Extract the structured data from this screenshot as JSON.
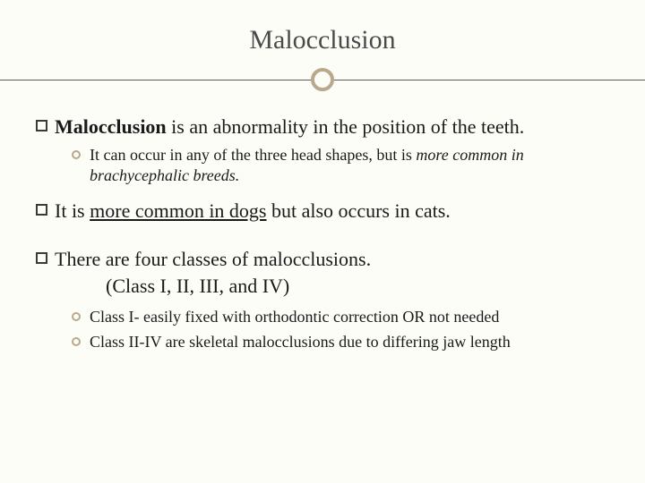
{
  "slide": {
    "title": "Malocclusion",
    "background_color": "#fdfdf8",
    "accent_color": "#b9a88a",
    "text_color": "#1a1a1a",
    "title_color": "#4a4a4a",
    "title_fontsize": 30,
    "main_fontsize": 22,
    "sub_fontsize": 18
  },
  "items": [
    {
      "bold_lead": "Malocclusion",
      "rest": " is an abnormality in the position of the teeth.",
      "subs": [
        {
          "plain1": "It can occur in any of the three head shapes, but is ",
          "italic": "more common in brachycephalic breeds.",
          "plain2": ""
        }
      ]
    },
    {
      "plain1": "It is ",
      "underline": "more common in dogs",
      "plain2": " but also occurs in cats."
    },
    {
      "plain": "There are four classes of malocclusions.",
      "indent_after": "(Class I, II, III, and IV)",
      "subs": [
        {
          "text": "Class I- easily fixed with orthodontic correction OR not needed"
        },
        {
          "text": "Class II-IV are skeletal malocclusions due to differing jaw length"
        }
      ]
    }
  ]
}
